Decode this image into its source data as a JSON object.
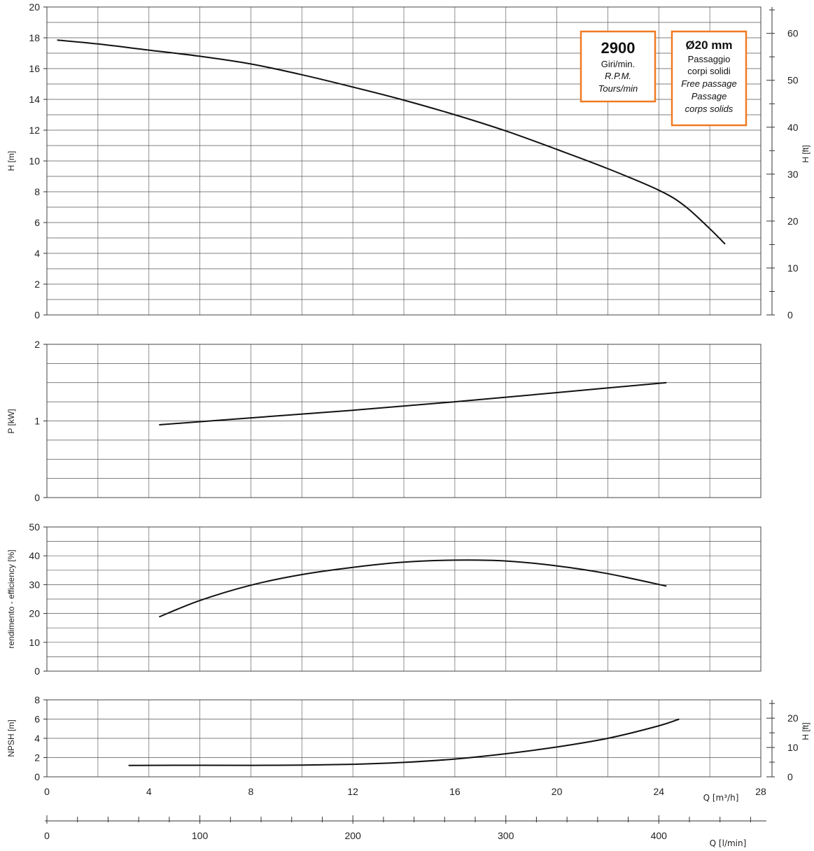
{
  "colors": {
    "accent_box": "#f07a22",
    "curve": "#111111",
    "grid": "#666666"
  },
  "info_boxes": {
    "speed": {
      "value": "2900",
      "lines": [
        "Giri/min.",
        "R.P.M.",
        "Tours/min"
      ]
    },
    "passage": {
      "value": "Ø20 mm",
      "lines": [
        "Passaggio",
        "corpi solidi",
        "Free passage",
        "Passage",
        "corps solids"
      ]
    }
  },
  "chart_data": [
    {
      "type": "line",
      "ylabel": "H [m]",
      "ylabel_right": "H [ft]",
      "xlim": [
        0,
        28
      ],
      "ylim": [
        0,
        20
      ],
      "y_ticks": [
        0,
        2,
        4,
        6,
        8,
        10,
        12,
        14,
        16,
        18,
        20
      ],
      "y_right_ticks": [
        0,
        10,
        20,
        30,
        40,
        50,
        60
      ],
      "y_right_minor_step": 5,
      "grid": true,
      "series": [
        {
          "x": [
            0.4,
            2,
            4,
            6,
            8,
            10,
            12,
            14,
            16,
            18,
            20,
            22,
            24,
            25,
            26,
            26.6
          ],
          "y": [
            17.85,
            17.6,
            17.2,
            16.8,
            16.3,
            15.6,
            14.8,
            13.95,
            13.0,
            11.95,
            10.75,
            9.5,
            8.1,
            7.1,
            5.6,
            4.6
          ]
        }
      ]
    },
    {
      "type": "line",
      "ylabel": "P [kW]",
      "xlim": [
        0,
        28
      ],
      "ylim": [
        0,
        2
      ],
      "y_ticks": [
        0,
        1,
        2
      ],
      "grid": true,
      "series": [
        {
          "x": [
            4.4,
            8,
            12,
            16,
            20,
            24.3
          ],
          "y": [
            0.95,
            1.04,
            1.14,
            1.25,
            1.37,
            1.5
          ]
        }
      ]
    },
    {
      "type": "line",
      "ylabel": "rendimento - efficiency [%]",
      "xlim": [
        0,
        28
      ],
      "ylim": [
        0,
        50
      ],
      "y_ticks": [
        0,
        10,
        20,
        30,
        40,
        50
      ],
      "grid": true,
      "series": [
        {
          "x": [
            4.4,
            6,
            8,
            10,
            12,
            14,
            16,
            18,
            20,
            22,
            24.3
          ],
          "y": [
            18.8,
            24.5,
            29.8,
            33.5,
            36.0,
            37.8,
            38.5,
            38.2,
            36.5,
            33.8,
            29.5
          ]
        }
      ]
    },
    {
      "type": "line",
      "ylabel": "NPSH [m]",
      "ylabel_right": "H [ft]",
      "xlabel": "Q [m³/h]",
      "xlim": [
        0,
        28
      ],
      "ylim": [
        0,
        8
      ],
      "y_ticks": [
        0,
        2,
        4,
        6,
        8
      ],
      "y_right_ticks": [
        0,
        10,
        20
      ],
      "y_right_minor_step": 5,
      "x_ticks": [
        0,
        4,
        8,
        12,
        16,
        20,
        24,
        28
      ],
      "grid": true,
      "series": [
        {
          "x": [
            3.2,
            6,
            9,
            12,
            14,
            16,
            18,
            20,
            22,
            24,
            24.8
          ],
          "y": [
            1.18,
            1.2,
            1.2,
            1.3,
            1.5,
            1.85,
            2.4,
            3.1,
            4.0,
            5.3,
            6.0
          ]
        }
      ]
    }
  ],
  "secondary_x_axis": {
    "label": "Q [l/min]",
    "ticks": [
      0,
      100,
      200,
      300,
      400
    ],
    "minor_step": 20,
    "max": 466.67
  }
}
